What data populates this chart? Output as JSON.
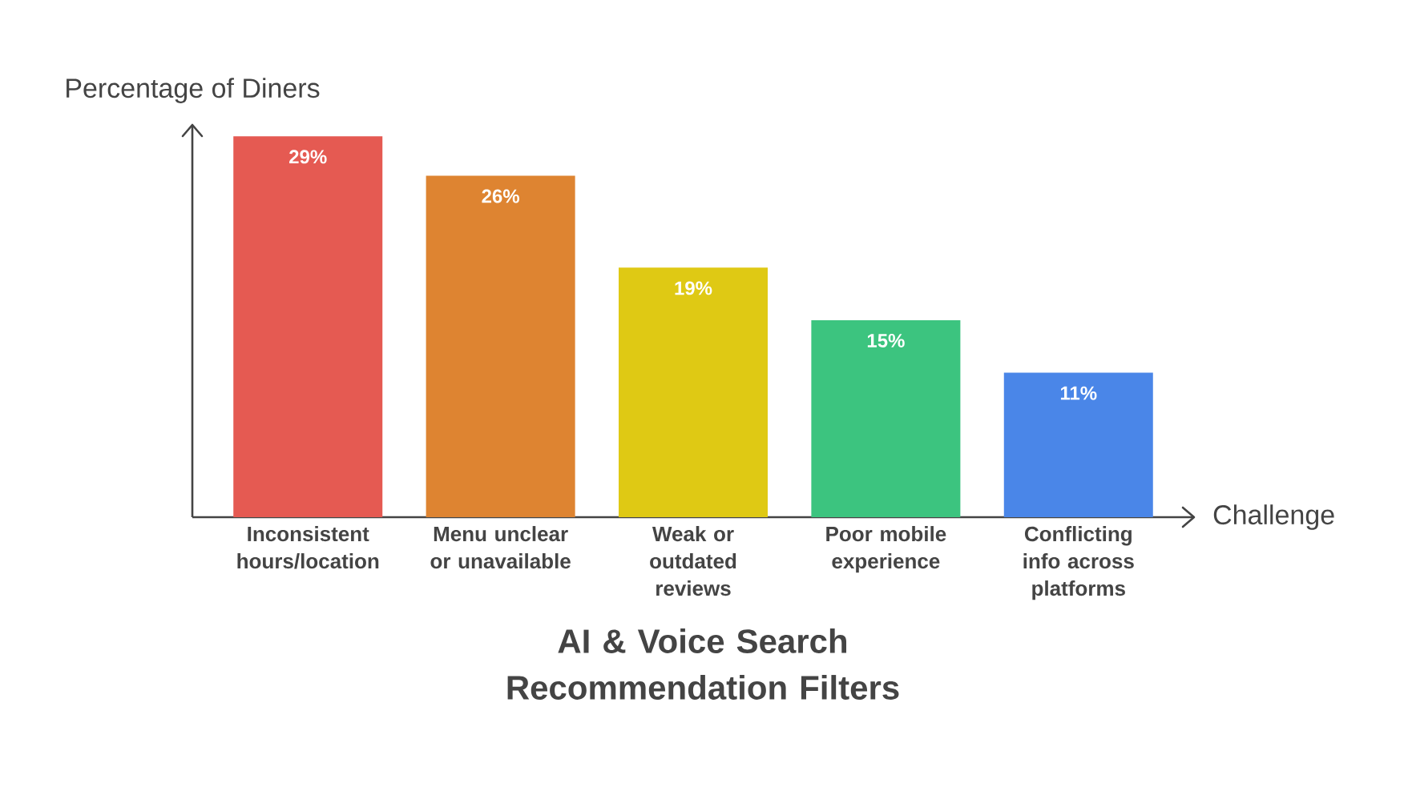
{
  "chart_data": {
    "type": "bar",
    "title": "AI & Voice Search Recommendation Filters",
    "xlabel": "Challenge",
    "ylabel": "Percentage of Diners",
    "categories": [
      "Inconsistent hours/location",
      "Menu unclear or unavailable",
      "Weak or outdated reviews",
      "Poor mobile experience",
      "Conflicting info across platforms"
    ],
    "values": [
      29,
      26,
      19,
      15,
      11
    ],
    "colors": [
      "#e55a52",
      "#de8431",
      "#dfc914",
      "#3cc47f",
      "#4a86e8"
    ],
    "value_labels": [
      "29%",
      "26%",
      "19%",
      "15%",
      "11%"
    ]
  }
}
